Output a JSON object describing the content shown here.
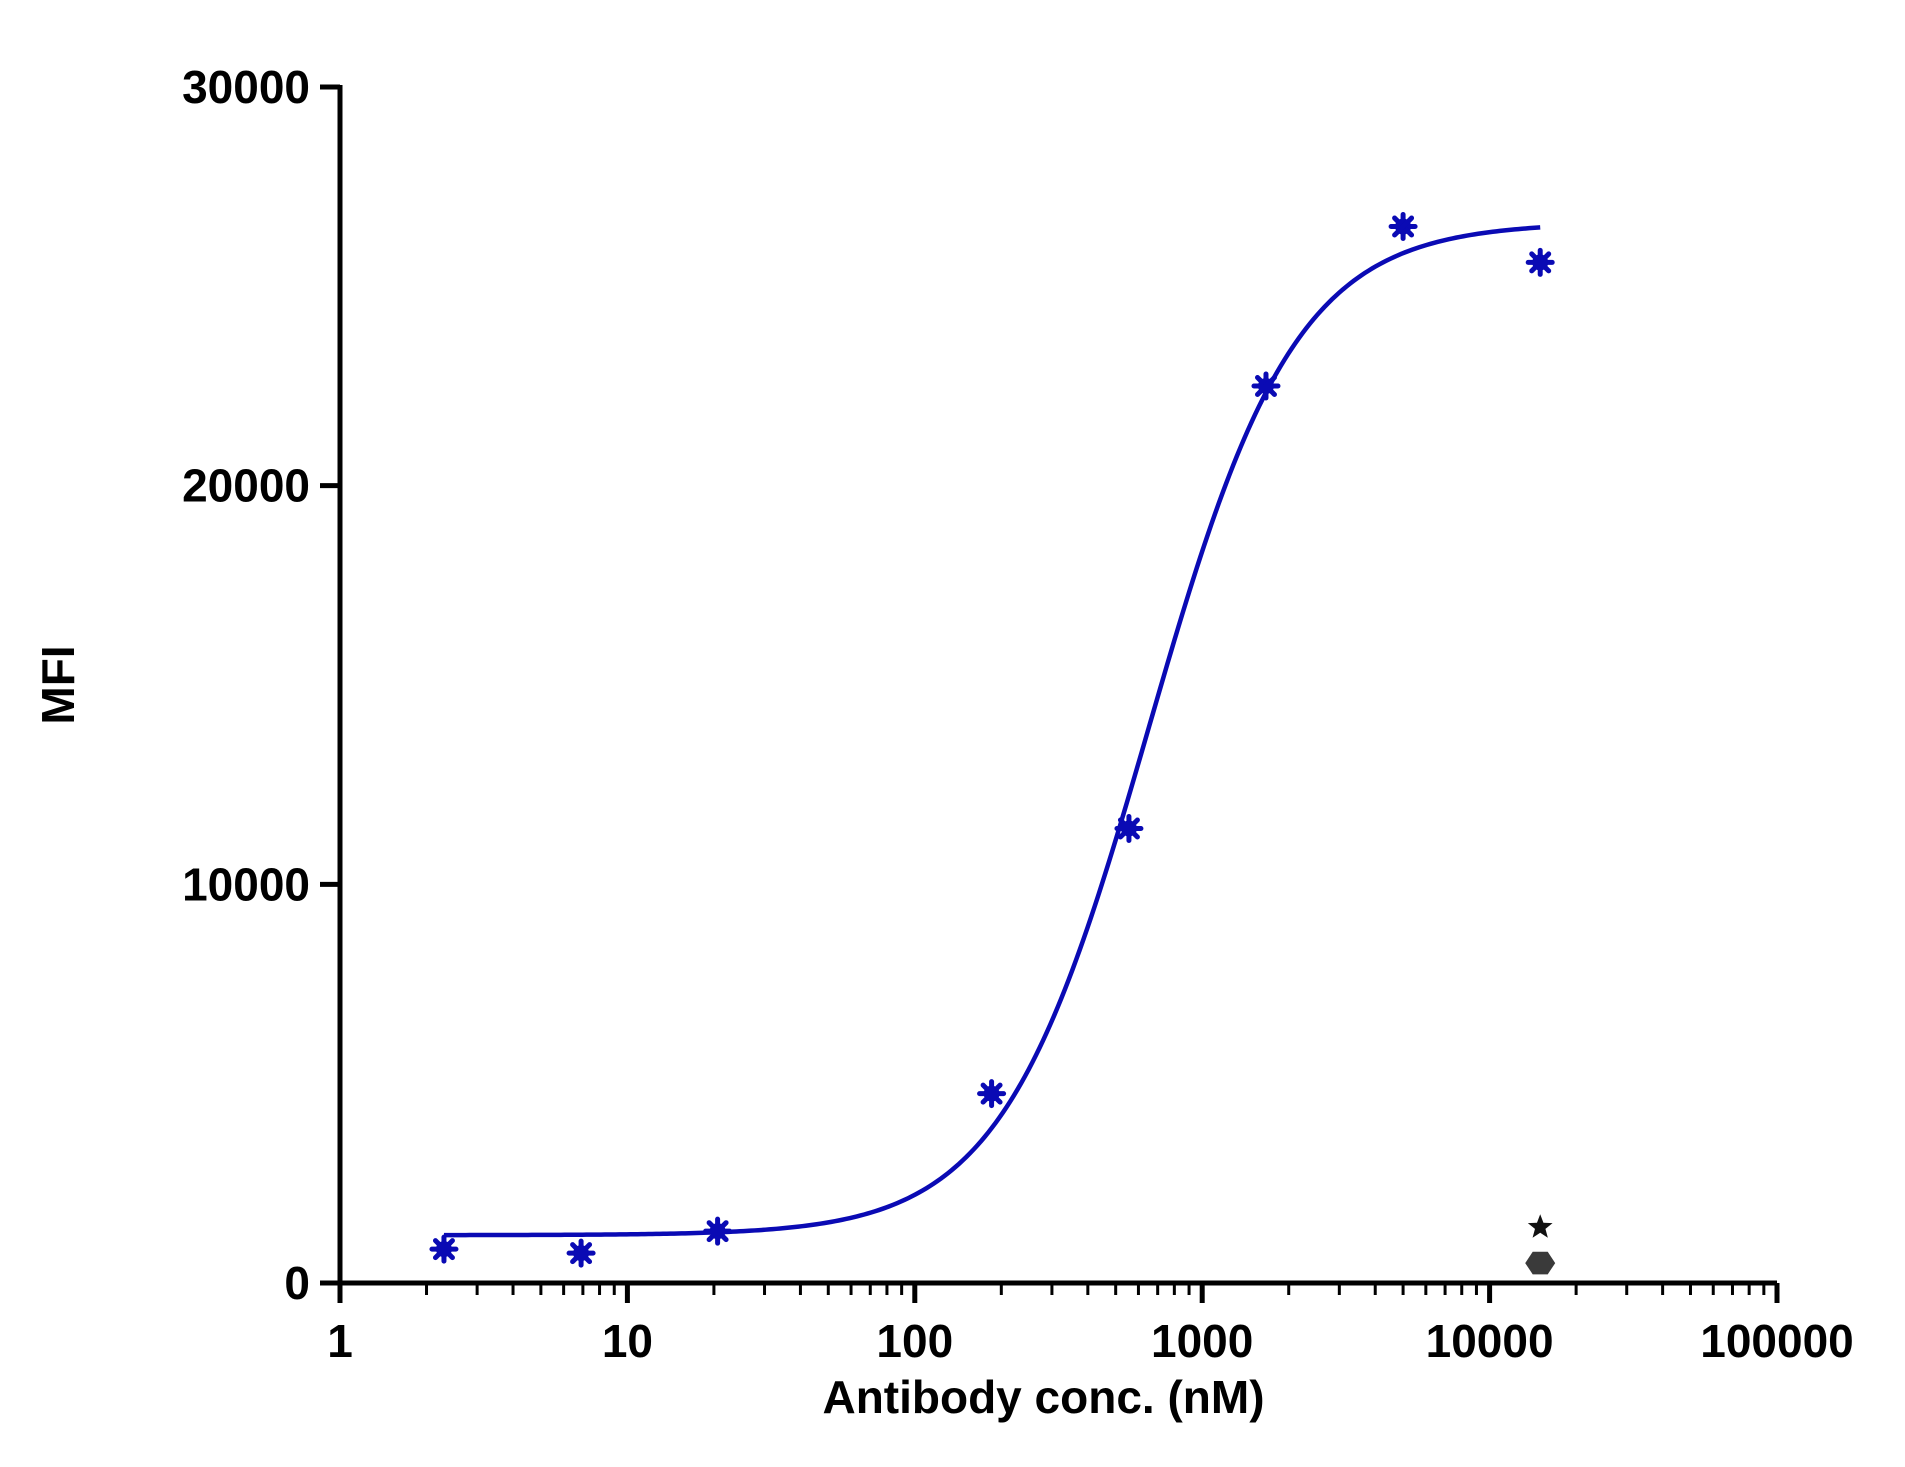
{
  "chart_data": {
    "type": "scatter",
    "xlabel": "Antibody conc. (nM)",
    "ylabel": "MFI",
    "xscale": "log",
    "xlim": [
      1,
      100000
    ],
    "ylim": [
      0,
      30000
    ],
    "x_ticks": [
      1,
      10,
      100,
      1000,
      10000,
      100000
    ],
    "x_tick_labels": [
      "1",
      "10",
      "100",
      "1000",
      "10000",
      "100000"
    ],
    "y_ticks": [
      0,
      10000,
      20000,
      30000
    ],
    "y_tick_labels": [
      "0",
      "10000",
      "20000",
      "30000"
    ],
    "grid": false,
    "legend": "none",
    "series": [
      {
        "marker": "asterisk",
        "color": "#0A0AB4",
        "x": [
          2.3,
          6.9,
          20.6,
          185,
          556,
          1667,
          5000,
          15000
        ],
        "y": [
          850,
          750,
          1300,
          4750,
          11400,
          22500,
          26500,
          25600
        ],
        "fit": {
          "model": "four-parameter logistic",
          "bottom": 1200,
          "top": 26600,
          "ec50": 650,
          "hill": 1.7,
          "x_range": [
            2.3,
            15000
          ]
        }
      },
      {
        "marker": "star",
        "color": "#111111",
        "x": [
          15000
        ],
        "y": [
          1400
        ]
      },
      {
        "marker": "hexagon",
        "color": "#3A3A3A",
        "x": [
          15000
        ],
        "y": [
          500
        ]
      }
    ]
  }
}
